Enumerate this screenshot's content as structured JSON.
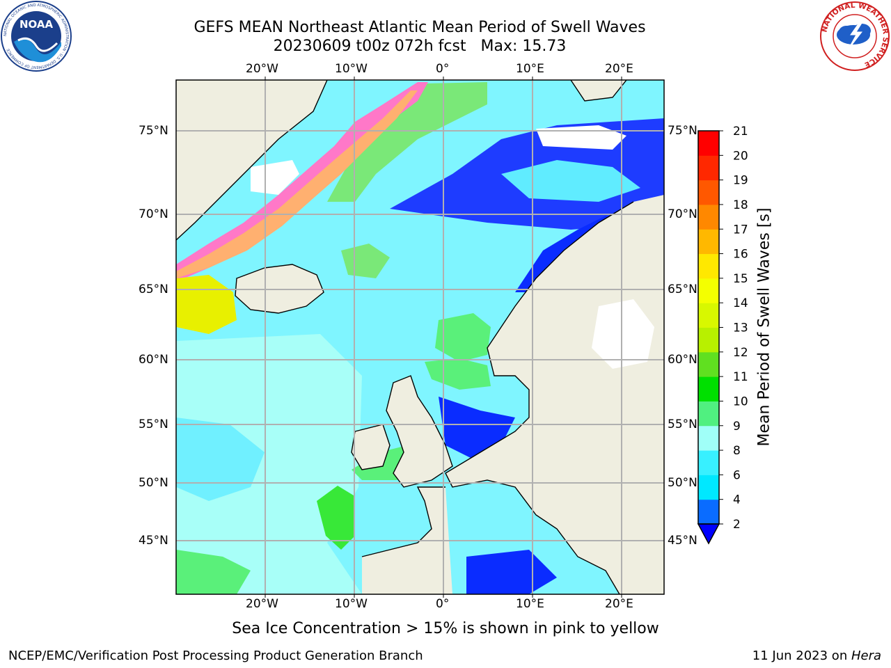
{
  "title": {
    "line1": "GEFS MEAN Northeast Atlantic Mean Period of Swell Waves",
    "line2": "20230609 t00z 072h fcst   Max: 15.73"
  },
  "map": {
    "lon_labels": [
      "20°W",
      "10°W",
      "0°",
      "10°E",
      "20°E"
    ],
    "lat_labels": [
      "75°N",
      "70°N",
      "65°N",
      "60°N",
      "55°N",
      "50°N",
      "45°N"
    ],
    "colors": {
      "land": "#efeee0",
      "ocean_default": "#7ff5ff",
      "coastline": "#000000",
      "gridline": "#b0b0b0",
      "no_data": "#ffffff"
    }
  },
  "colorbar": {
    "title": "Mean Period of Swell Waves [s]",
    "ticks": [
      "2",
      "4",
      "6",
      "8",
      "9",
      "10",
      "11",
      "12",
      "13",
      "14",
      "15",
      "16",
      "17",
      "18",
      "19",
      "20",
      "21"
    ],
    "colors": [
      "#0a6cff",
      "#00e8ff",
      "#38f0ff",
      "#a0fff8",
      "#50f080",
      "#00e000",
      "#60e020",
      "#b8f000",
      "#d8f800",
      "#f4ff00",
      "#ffe800",
      "#ffb800",
      "#ff8800",
      "#ff5800",
      "#ff2800",
      "#ff0000"
    ],
    "extend_color": "#0000ff"
  },
  "footer": {
    "note": "Sea Ice Concentration > 15% is shown in pink to yellow",
    "left": "NCEP/EMC/Verification Post Processing Product Generation Branch",
    "right_date": "11 Jun 2023 on ",
    "right_host": "Hera"
  },
  "logos": {
    "left": "NOAA",
    "left_ring": "NATIONAL OCEANIC AND ATMOSPHERIC ADMINISTRATION · U.S. DEPARTMENT OF COMMERCE",
    "right_ring": "NATIONAL WEATHER SERVICE"
  }
}
